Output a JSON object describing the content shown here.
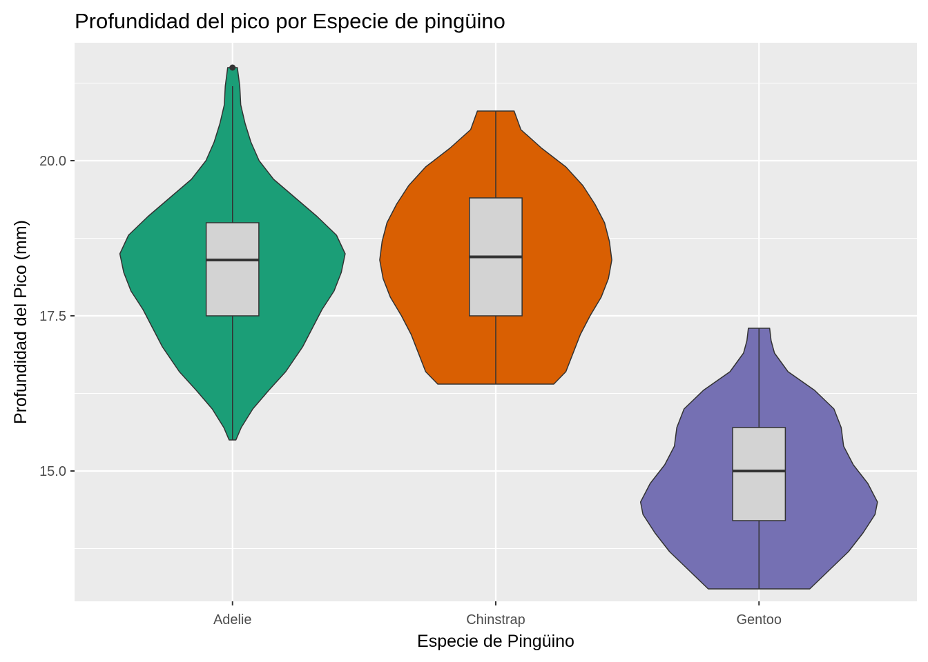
{
  "chart_data": {
    "type": "violin",
    "title": "Profundidad del pico por Especie de pingüino",
    "xlabel": "Especie de Pingüino",
    "ylabel": "Profundidad del Pico (mm)",
    "ylim": [
      12.9,
      21.9
    ],
    "yticks": [
      {
        "value": 15.0,
        "label": "15.0"
      },
      {
        "value": 17.5,
        "label": "17.5"
      },
      {
        "value": 20.0,
        "label": "20.0"
      }
    ],
    "grid": true,
    "panel_background": "#EBEBEB",
    "box_fill": "#D3D3D3",
    "categories": [
      "Adelie",
      "Chinstrap",
      "Gentoo"
    ],
    "series": [
      {
        "category": "Adelie",
        "color": "#1B9E77",
        "violin": {
          "y": [
            15.5,
            15.7,
            16.0,
            16.3,
            16.6,
            17.0,
            17.3,
            17.6,
            17.9,
            18.2,
            18.5,
            18.8,
            19.1,
            19.4,
            19.7,
            20.0,
            20.3,
            20.6,
            20.9,
            21.2,
            21.5
          ],
          "width": [
            0.07,
            0.18,
            0.42,
            0.75,
            1.1,
            1.45,
            1.65,
            1.85,
            2.1,
            2.25,
            2.33,
            2.15,
            1.75,
            1.3,
            0.85,
            0.55,
            0.38,
            0.26,
            0.17,
            0.15,
            0.1
          ]
        },
        "box": {
          "lower_whisker": 15.5,
          "q1": 17.5,
          "median": 18.4,
          "q3": 19.0,
          "upper_whisker": 21.2
        },
        "outliers": [
          21.5
        ]
      },
      {
        "category": "Chinstrap",
        "color": "#D95F02",
        "violin": {
          "y": [
            16.4,
            16.6,
            16.9,
            17.2,
            17.5,
            17.8,
            18.1,
            18.4,
            18.7,
            19.0,
            19.3,
            19.6,
            19.9,
            20.2,
            20.5,
            20.8
          ],
          "width": [
            1.2,
            1.45,
            1.6,
            1.75,
            1.95,
            2.18,
            2.33,
            2.4,
            2.35,
            2.25,
            2.05,
            1.8,
            1.45,
            0.95,
            0.52,
            0.38
          ]
        },
        "box": {
          "lower_whisker": 16.4,
          "q1": 17.5,
          "median": 18.45,
          "q3": 19.4,
          "upper_whisker": 20.8
        },
        "outliers": []
      },
      {
        "category": "Gentoo",
        "color": "#7570B3",
        "violin": {
          "y": [
            13.1,
            13.4,
            13.7,
            14.0,
            14.3,
            14.5,
            14.8,
            15.1,
            15.4,
            15.7,
            16.0,
            16.3,
            16.6,
            16.9,
            17.1,
            17.3
          ],
          "width": [
            1.05,
            1.45,
            1.85,
            2.15,
            2.4,
            2.45,
            2.25,
            1.95,
            1.75,
            1.7,
            1.55,
            1.15,
            0.6,
            0.32,
            0.25,
            0.22
          ]
        },
        "box": {
          "lower_whisker": 13.1,
          "q1": 14.2,
          "median": 15.0,
          "q3": 15.7,
          "upper_whisker": 17.3
        },
        "outliers": []
      }
    ]
  }
}
